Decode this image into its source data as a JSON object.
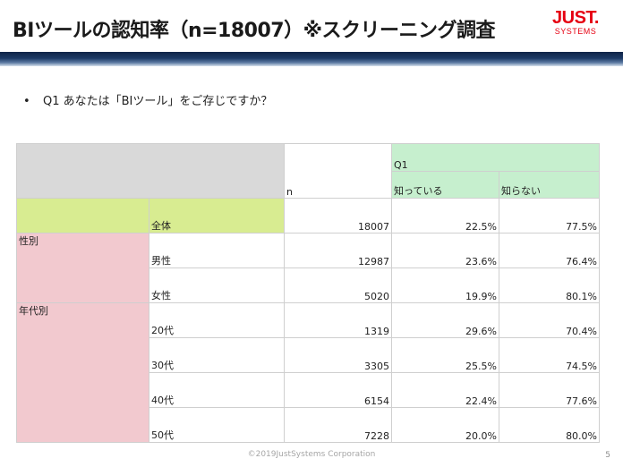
{
  "slide": {
    "title": "BIツールの認知率（n=18007）※スクリーニング調査",
    "bullet": "•",
    "question_line": "Q1 あなたは「BIツール」をご存じですか？",
    "footer": "©2019JustSystems Corporation",
    "page_number": "5"
  },
  "logo": {
    "main": "JUST.",
    "sub": "SYSTEMS",
    "color": "#e60012"
  },
  "colors": {
    "title_bar": "#1d3a66",
    "header_gray": "#d9d9d9",
    "header_green": "#c6efce",
    "total_lime": "#d8ec91",
    "group_pink": "#f2c9cf"
  },
  "table": {
    "n_header": "n",
    "question_header": "Q1",
    "answer_headers": [
      "知っている",
      "知らない"
    ],
    "total": {
      "label": "全体",
      "n": "18007",
      "know": "22.5%",
      "dont_know": "77.5%"
    },
    "groups": [
      {
        "name": "性別",
        "rows": [
          {
            "label": "男性",
            "n": "12987",
            "know": "23.6%",
            "dont_know": "76.4%"
          },
          {
            "label": "女性",
            "n": "5020",
            "know": "19.9%",
            "dont_know": "80.1%"
          }
        ]
      },
      {
        "name": "年代別",
        "rows": [
          {
            "label": "20代",
            "n": "1319",
            "know": "29.6%",
            "dont_know": "70.4%"
          },
          {
            "label": "30代",
            "n": "3305",
            "know": "25.5%",
            "dont_know": "74.5%"
          },
          {
            "label": "40代",
            "n": "6154",
            "know": "22.4%",
            "dont_know": "77.6%"
          },
          {
            "label": "50代",
            "n": "7228",
            "know": "20.0%",
            "dont_know": "80.0%"
          }
        ]
      }
    ]
  }
}
